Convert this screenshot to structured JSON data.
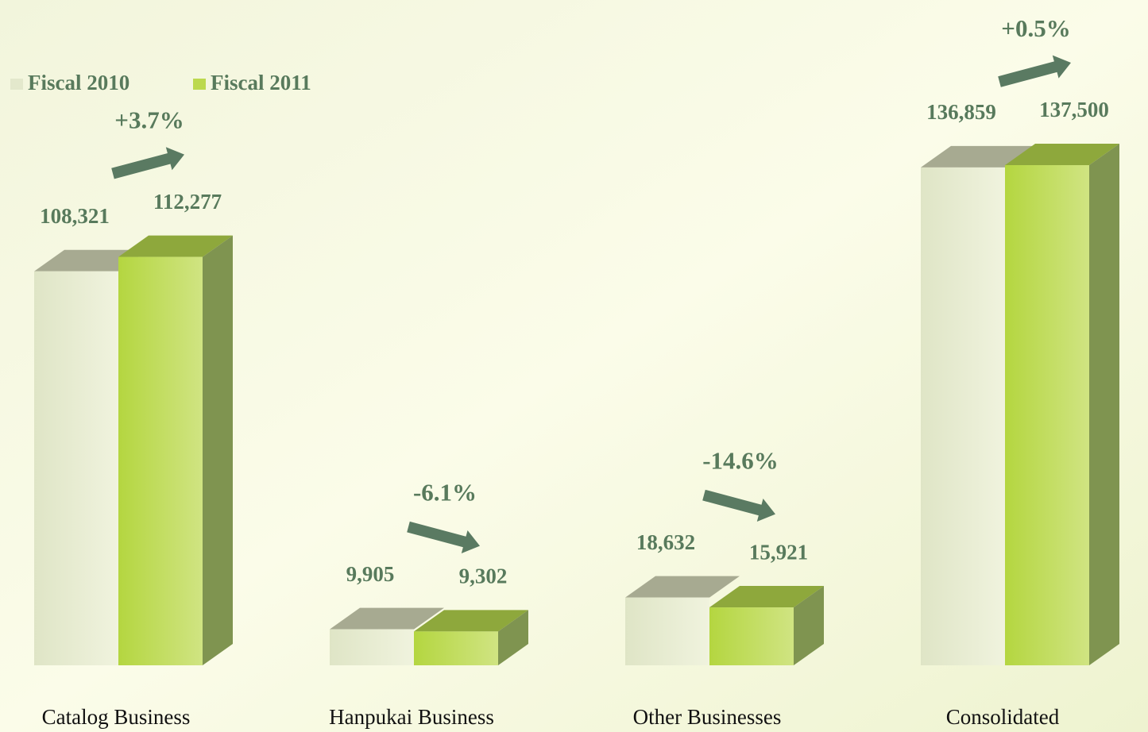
{
  "chart_data": {
    "type": "bar3d",
    "categories": [
      "Catalog Business",
      "Hanpukai Business",
      "Other Businesses",
      "Consolidated"
    ],
    "series": [
      {
        "name": "Fiscal 2010",
        "color": "#e3e8cc",
        "values": [
          108321,
          9905,
          18632,
          136859
        ],
        "value_labels": [
          "108,321",
          "9,905",
          "18,632",
          "136,859"
        ]
      },
      {
        "name": "Fiscal 2011",
        "color": "#bcd94e",
        "values": [
          112277,
          9302,
          15921,
          137500
        ],
        "value_labels": [
          "112,277",
          "9,302",
          "15,921",
          "137,500"
        ]
      }
    ],
    "annotations": [
      "+3.7%",
      "-6.1%",
      "-14.6%",
      "+0.5%"
    ]
  }
}
